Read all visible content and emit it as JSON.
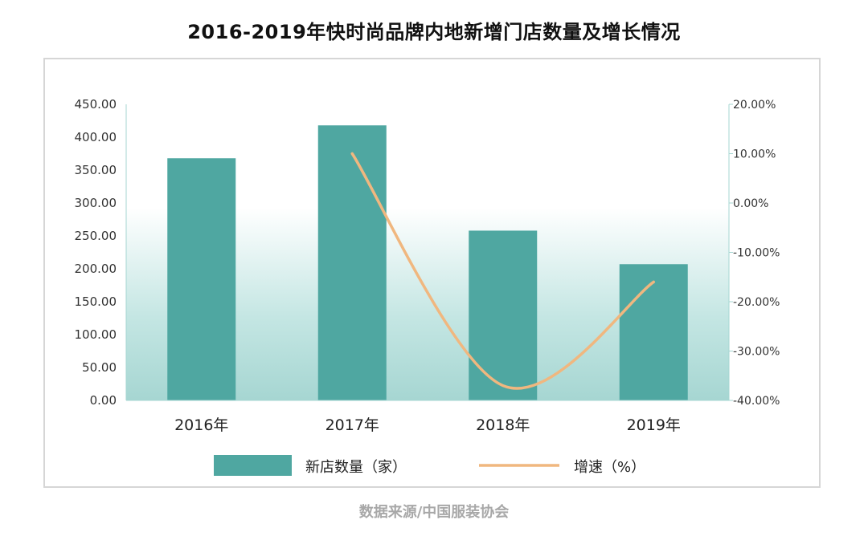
{
  "title": "2016-2019年快时尚品牌内地新增门店数量及增长情况",
  "source": "数据来源/中国服装协会",
  "colors": {
    "bar": "#4fa7a1",
    "line": "#f0b77f",
    "plot_bg_bottom": "#a9d8d4",
    "axis": "#a5d6d2"
  },
  "chart_data": {
    "type": "bar",
    "categories": [
      "2016年",
      "2017年",
      "2018年",
      "2019年"
    ],
    "series": [
      {
        "name": "新店数量（家）",
        "type": "bar",
        "axis": "left",
        "values": [
          368,
          418,
          258,
          207
        ]
      },
      {
        "name": "增速（%）",
        "type": "line",
        "axis": "right",
        "values": [
          null,
          10,
          -37,
          -16
        ]
      }
    ],
    "y_left": {
      "min": 0,
      "max": 450,
      "step": 50,
      "ticks": [
        "0.00",
        "50.00",
        "100.00",
        "150.00",
        "200.00",
        "250.00",
        "300.00",
        "350.00",
        "400.00",
        "450.00"
      ]
    },
    "y_right": {
      "min": -40,
      "max": 20,
      "step": 10,
      "ticks": [
        "-40.00%",
        "-30.00%",
        "-20.00%",
        "-10.00%",
        "0.00%",
        "10.00%",
        "20.00%"
      ]
    },
    "legend_position": "bottom",
    "grid": false
  }
}
